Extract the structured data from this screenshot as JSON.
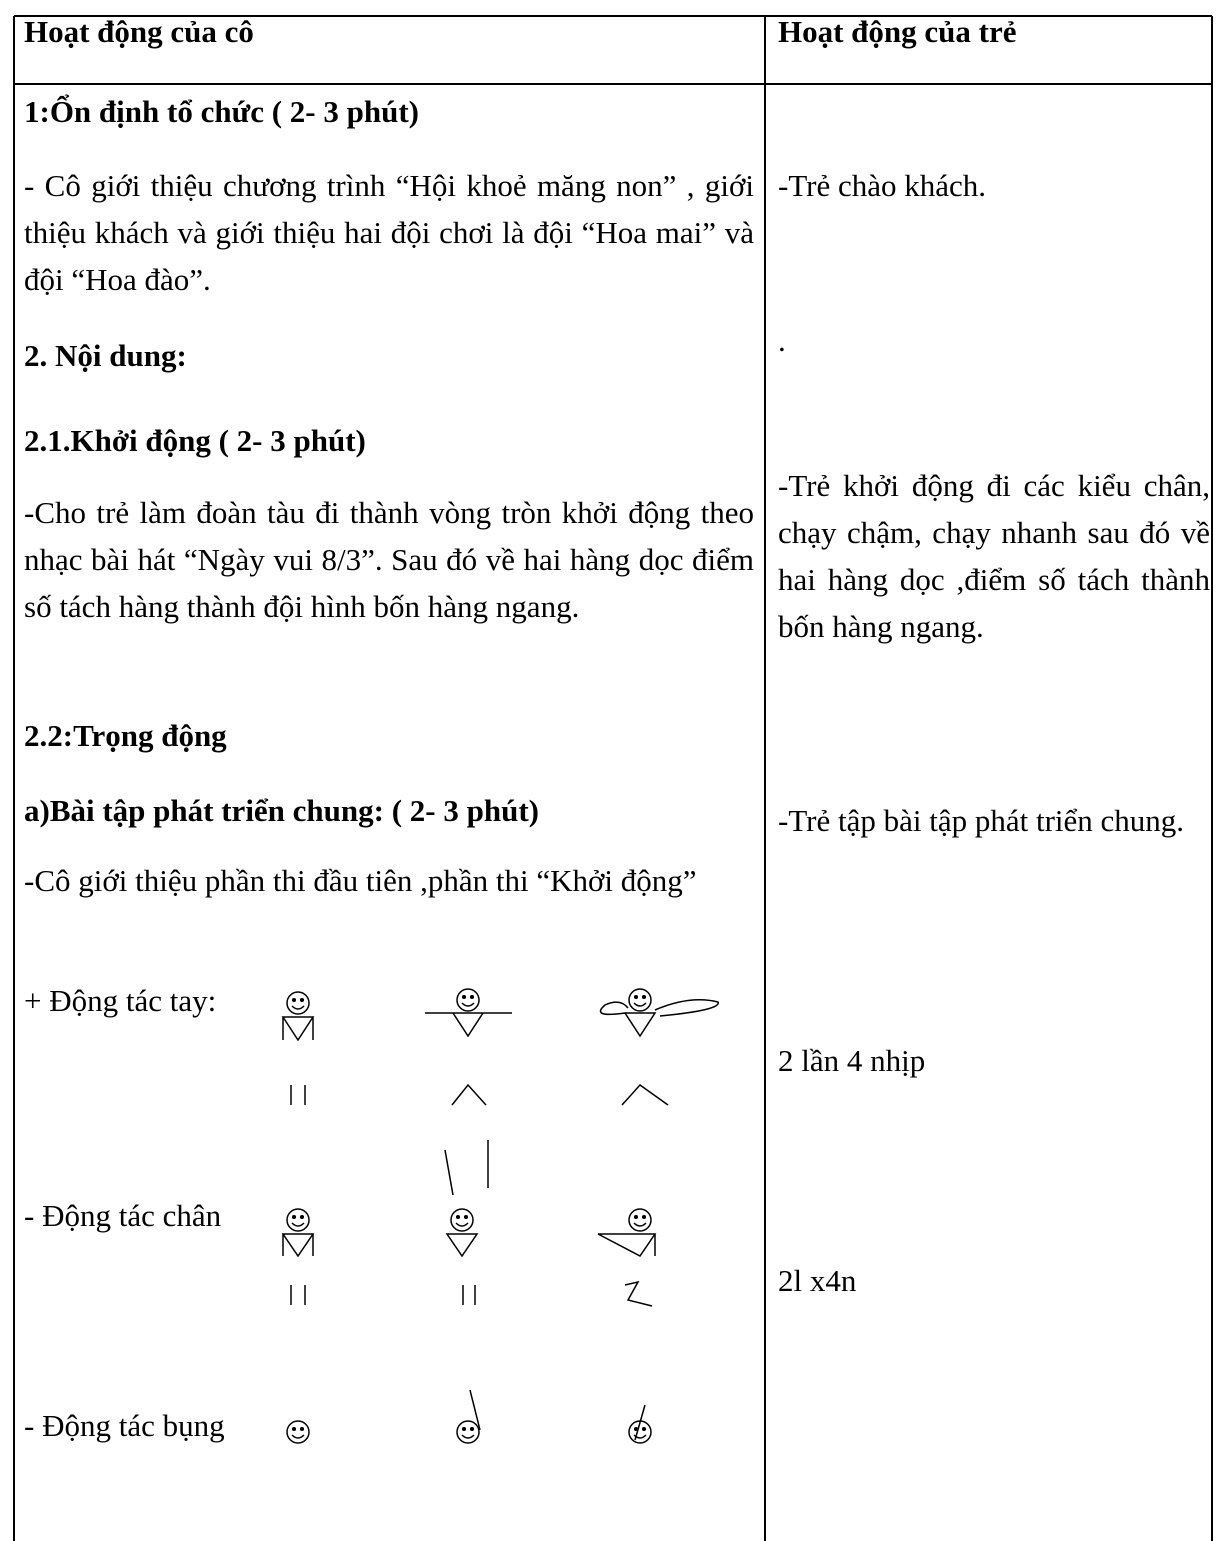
{
  "header": {
    "left": "Hoạt động của cô",
    "right": "Hoạt động của trẻ"
  },
  "left": [
    "1:Ổn định tổ chức ( 2- 3  phút)",
    "- Cô giới thiệu chương trình “Hội khoẻ măng non” , giới thiệu khách và giới thiệu hai đội chơi là đội “Hoa mai” và đội “Hoa đào”.",
    "2. Nội dung:",
    "2.1.Khởi động (  2- 3 phút)",
    "-Cho trẻ làm đoàn tàu đi thành vòng tròn khởi động theo nhạc bài hát “Ngày vui 8/3”. Sau đó về hai hàng dọc điểm số tách hàng thành đội hình bốn hàng ngang.",
    "2.2:Trọng động",
    "a)Bài tập phát triển chung: ( 2- 3 phút)",
    "-Cô giới thiệu phần thi đầu tiên ,phần thi “Khởi động”",
    "+ Động tác tay:",
    "- Động tác chân",
    "- Động tác bụng"
  ],
  "right": [
    "-Trẻ chào khách.",
    ".",
    "-Trẻ khởi động đi các kiểu chân, chạy chậm, chạy nhanh sau đó về hai hàng dọc ,điểm số tách thành bốn hàng ngang.",
    "-Trẻ tập bài tập phát triển chung.",
    "2 lần 4 nhịp",
    "2l x4n"
  ]
}
